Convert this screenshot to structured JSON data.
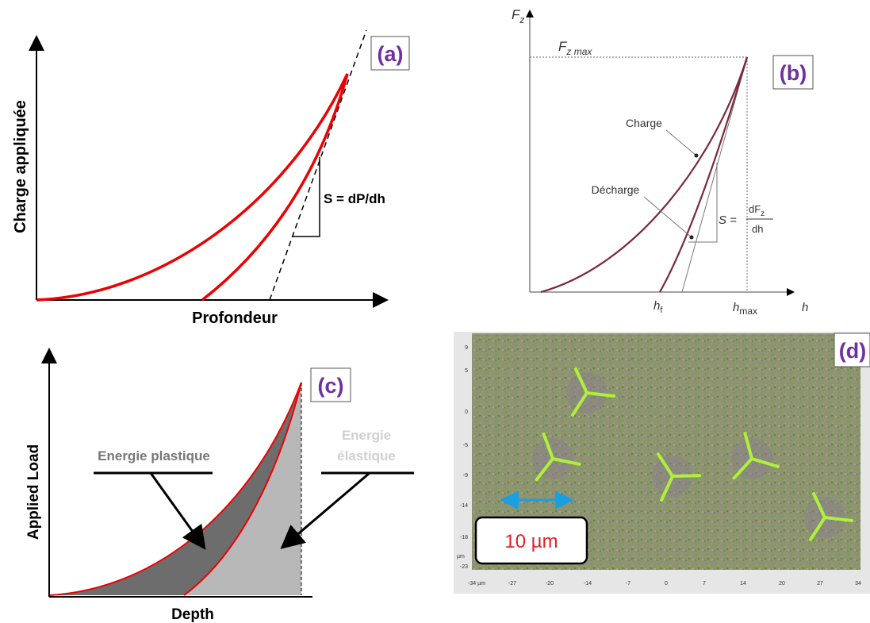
{
  "panel_a": {
    "label": "(a)",
    "y_axis": "Charge appliquée",
    "x_axis": "Profondeur",
    "slope": "S = dP/dh"
  },
  "panel_b": {
    "label": "(b)",
    "y_axis": {
      "symbol": "F",
      "sub": "z"
    },
    "fmax": {
      "symbol": "F",
      "sub": "z max"
    },
    "loading": "Charge",
    "unloading": "Décharge",
    "slope": {
      "lhs": "S =",
      "num": "dF",
      "num_sub": "z",
      "den": "dh"
    },
    "hf": {
      "symbol": "h",
      "sub": "f"
    },
    "hmax": {
      "symbol": "h",
      "sub": "max"
    },
    "x_axis": "h"
  },
  "panel_c": {
    "label": "(c)",
    "y_axis": "Applied Load",
    "x_axis": "Depth",
    "plastic": "Energie plastique",
    "elastic": [
      "Energie",
      "élastique"
    ]
  },
  "panel_d": {
    "label": "(d)",
    "scale_bar": "10 µm",
    "y_ticks": [
      "9",
      "5",
      "0",
      "-5",
      "-9",
      "-14",
      "-18",
      "-23"
    ],
    "y_unit": "µm",
    "x_ticks": [
      "-34 µm",
      "-27",
      "-20",
      "-14",
      "-7",
      "0",
      "7",
      "14",
      "20",
      "27",
      "34"
    ]
  }
}
